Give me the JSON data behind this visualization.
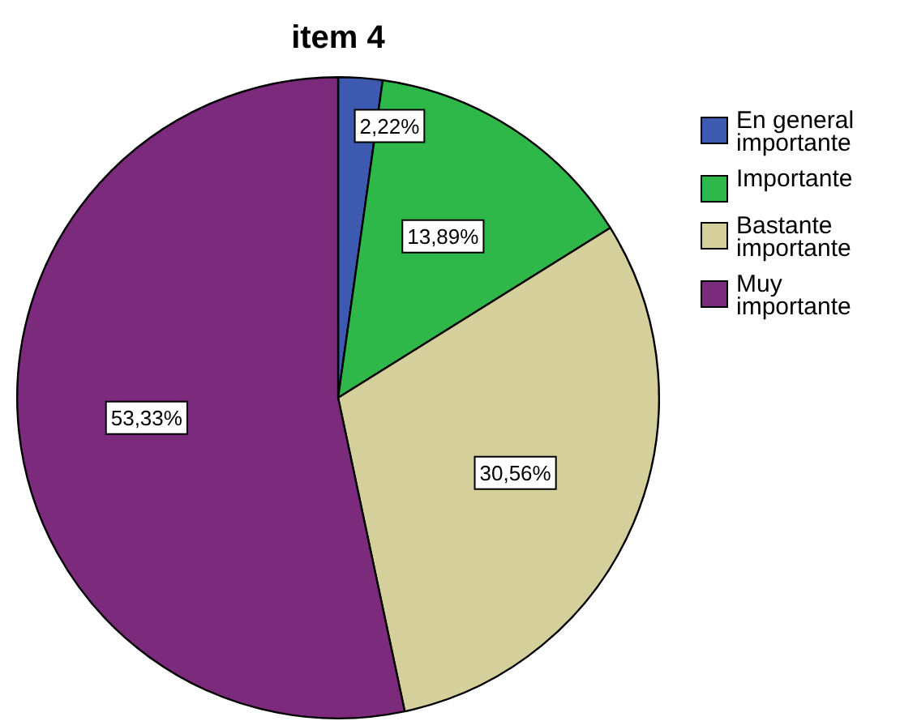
{
  "chart_data": {
    "type": "pie",
    "title": "item 4",
    "categories": [
      "En general importante",
      "Importante",
      "Bastante importante",
      "Muy importante"
    ],
    "values": [
      2.22,
      13.89,
      30.56,
      53.33
    ],
    "colors": [
      "#3d5ab0",
      "#2fb84a",
      "#d4cf9b",
      "#7b2a7c"
    ],
    "value_labels": [
      "2,22%",
      "13,89%",
      "30,56%",
      "53,33%"
    ],
    "legend": "right"
  }
}
